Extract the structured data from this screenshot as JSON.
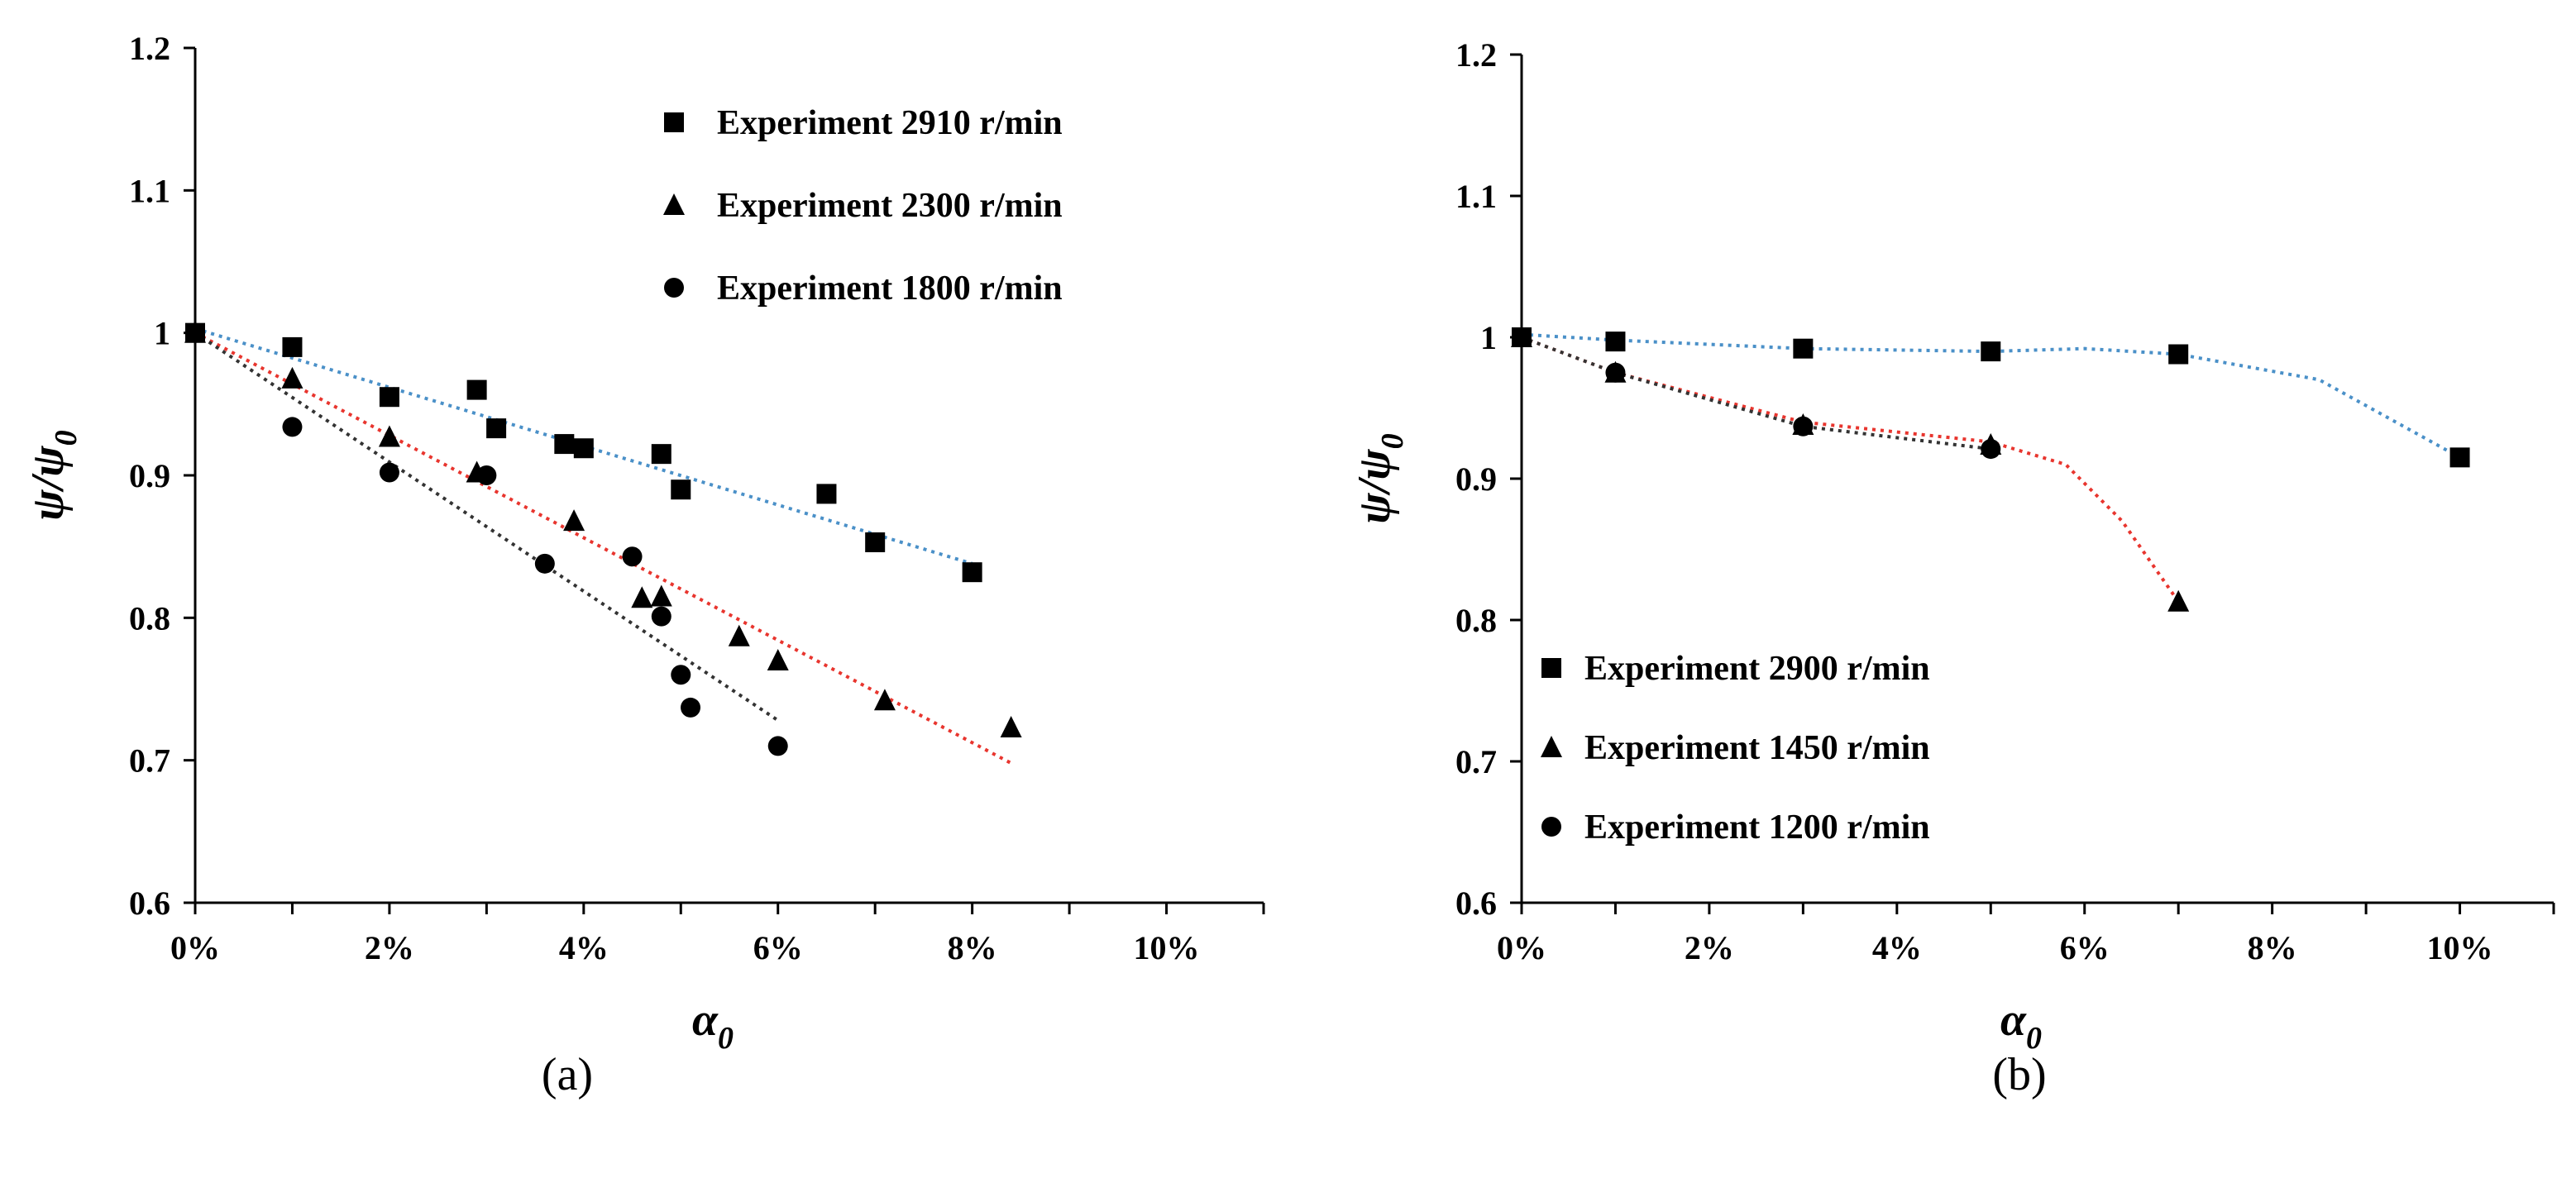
{
  "chart_data": [
    {
      "type": "scatter",
      "panel_label": "(a)",
      "xlabel": "α",
      "xlabel_sub": "0",
      "ylabel": "ψ/ψ",
      "ylabel_sub": "0",
      "xlim": [
        0,
        11
      ],
      "ylim": [
        0.6,
        1.2
      ],
      "x_ticks": [
        0,
        2,
        4,
        6,
        8,
        10
      ],
      "x_tick_labels": [
        "0%",
        "2%",
        "4%",
        "6%",
        "8%",
        "10%"
      ],
      "y_ticks": [
        0.6,
        0.7,
        0.8,
        0.9,
        1.0,
        1.1,
        1.2
      ],
      "y_tick_labels": [
        "0.6",
        "0.7",
        "0.8",
        "0.9",
        "1",
        "1.1",
        "1.2"
      ],
      "grid": false,
      "legend_position": "top-right",
      "series": [
        {
          "name": "Experiment 2910 r/min",
          "marker": "square",
          "trend_color": "#4a90c8",
          "x": [
            0,
            1,
            2,
            2.9,
            3.1,
            3.8,
            4,
            4.8,
            5,
            6.5,
            7,
            8
          ],
          "y": [
            1.0,
            0.99,
            0.955,
            0.96,
            0.933,
            0.922,
            0.919,
            0.915,
            0.89,
            0.887,
            0.853,
            0.832
          ],
          "trend": {
            "x": [
              0,
              8
            ],
            "y": [
              1.003,
              0.838
            ]
          }
        },
        {
          "name": "Experiment 2300 r/min",
          "marker": "triangle",
          "trend_color": "#e8352e",
          "x": [
            0,
            1,
            2,
            2.9,
            3.9,
            4.6,
            4.8,
            5.6,
            6,
            7.1,
            8.4
          ],
          "y": [
            1.0,
            0.968,
            0.927,
            0.902,
            0.868,
            0.814,
            0.815,
            0.787,
            0.77,
            0.742,
            0.723
          ],
          "trend": {
            "x": [
              0,
              8.4
            ],
            "y": [
              1.0,
              0.698
            ]
          }
        },
        {
          "name": "Experiment 1800 r/min",
          "marker": "circle",
          "trend_color": "#333333",
          "x": [
            0,
            1,
            2,
            3,
            3.6,
            4.5,
            4.8,
            5,
            5.1,
            6
          ],
          "y": [
            1.0,
            0.934,
            0.902,
            0.9,
            0.838,
            0.843,
            0.801,
            0.76,
            0.737,
            0.71
          ],
          "trend": {
            "x": [
              0,
              6
            ],
            "y": [
              1.0,
              0.728
            ]
          }
        }
      ]
    },
    {
      "type": "scatter",
      "panel_label": "(b)",
      "xlabel": "α",
      "xlabel_sub": "0",
      "ylabel": "ψ/ψ",
      "ylabel_sub": "0",
      "xlim": [
        0,
        11
      ],
      "ylim": [
        0.6,
        1.2
      ],
      "x_ticks": [
        0,
        2,
        4,
        6,
        8,
        10
      ],
      "x_tick_labels": [
        "0%",
        "2%",
        "4%",
        "6%",
        "8%",
        "10%"
      ],
      "y_ticks": [
        0.6,
        0.7,
        0.8,
        0.9,
        1.0,
        1.1,
        1.2
      ],
      "y_tick_labels": [
        "0.6",
        "0.7",
        "0.8",
        "0.9",
        "1",
        "1.1",
        "1.2"
      ],
      "grid": false,
      "legend_position": "bottom-left",
      "series": [
        {
          "name": "Experiment 2900 r/min",
          "marker": "square",
          "trend_color": "#4a90c8",
          "x": [
            0,
            1,
            3,
            5,
            7,
            10
          ],
          "y": [
            1.0,
            0.997,
            0.992,
            0.99,
            0.988,
            0.915
          ],
          "trend": {
            "x": [
              0,
              1,
              3,
              5,
              6,
              7,
              8.5,
              10
            ],
            "y": [
              1.002,
              0.998,
              0.992,
              0.99,
              0.992,
              0.988,
              0.97,
              0.915
            ]
          }
        },
        {
          "name": "Experiment 1450 r/min",
          "marker": "triangle",
          "trend_color": "#e8352e",
          "x": [
            0,
            1,
            3,
            5,
            7
          ],
          "y": [
            1.0,
            0.975,
            0.938,
            0.924,
            0.813
          ],
          "trend": {
            "x": [
              0,
              1,
              3,
              5,
              5.8,
              6.4,
              7
            ],
            "y": [
              1.0,
              0.975,
              0.94,
              0.926,
              0.91,
              0.87,
              0.813
            ]
          }
        },
        {
          "name": "Experiment 1200 r/min",
          "marker": "circle",
          "trend_color": "#333333",
          "x": [
            0,
            1,
            3,
            5
          ],
          "y": [
            1.0,
            0.975,
            0.937,
            0.921
          ],
          "trend": {
            "x": [
              0,
              1,
              3,
              5
            ],
            "y": [
              1.0,
              0.975,
              0.937,
              0.921
            ]
          }
        }
      ]
    }
  ]
}
